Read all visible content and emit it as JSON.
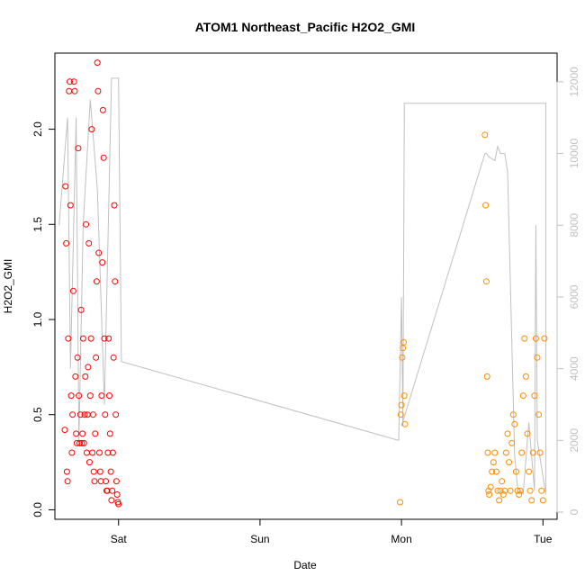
{
  "chart_data": {
    "type": "scatter",
    "title": "ATOM1 Northeast_Pacific H2O2_GMI",
    "xlabel": "Date",
    "ylabel": "H2O2_GMI",
    "y2label": "",
    "x_ticks": [
      "Sat",
      "Sun",
      "Mon",
      "Tue"
    ],
    "x_range_days": [
      -0.45,
      3.1
    ],
    "ylim": [
      -0.05,
      2.4
    ],
    "y_ticks": [
      0.0,
      0.5,
      1.0,
      1.5,
      2.0
    ],
    "y_tick_labels": [
      "0.0",
      "0.5",
      "1.0",
      "1.5",
      "2.0"
    ],
    "y2lim": [
      -200,
      12800
    ],
    "y2_ticks": [
      0,
      2000,
      4000,
      6000,
      8000,
      10000,
      12000
    ],
    "y2_tick_labels": [
      "0",
      "2000",
      "4000",
      "6000",
      "8000",
      "10000",
      "12000"
    ],
    "grid": false,
    "legend": "none",
    "colors": {
      "flight1": "#ff0000",
      "flight2": "#ff8c00",
      "altitude": "#c0c0c0",
      "axis": "#000000"
    },
    "series": [
      {
        "x_days": [
          -0.38,
          -0.375,
          -0.37,
          -0.365,
          -0.36,
          -0.355,
          -0.35,
          -0.345,
          -0.34,
          -0.335,
          -0.33,
          -0.325,
          -0.32,
          -0.315,
          -0.31,
          -0.305,
          -0.3,
          -0.295,
          -0.29,
          -0.285,
          -0.28,
          -0.275,
          -0.27,
          -0.265,
          -0.26,
          -0.255,
          -0.25,
          -0.245,
          -0.24,
          -0.235,
          -0.23,
          -0.225,
          -0.22,
          -0.215,
          -0.21,
          -0.205,
          -0.2,
          -0.195,
          -0.19,
          -0.185,
          -0.18,
          -0.175,
          -0.17,
          -0.165,
          -0.16,
          -0.155,
          -0.15,
          -0.145,
          -0.14,
          -0.135,
          -0.13,
          -0.125,
          -0.12,
          -0.115,
          -0.11,
          -0.105,
          -0.1,
          -0.095,
          -0.09,
          -0.085,
          -0.08,
          -0.075,
          -0.07,
          -0.065,
          -0.06,
          -0.055,
          -0.05,
          -0.045,
          -0.04,
          -0.035,
          -0.03,
          -0.025,
          -0.02,
          -0.015,
          -0.01,
          -0.005,
          0.0
        ],
        "values": [
          0.42,
          1.7,
          1.4,
          0.2,
          0.15,
          0.9,
          2.2,
          2.25,
          1.6,
          0.6,
          0.3,
          0.5,
          1.15,
          2.25,
          2.2,
          0.7,
          0.4,
          0.35,
          0.8,
          1.9,
          0.6,
          0.35,
          0.5,
          1.05,
          0.35,
          0.4,
          0.9,
          0.35,
          0.5,
          0.7,
          1.5,
          0.3,
          0.5,
          0.75,
          1.4,
          0.25,
          0.6,
          0.9,
          2.0,
          0.3,
          0.5,
          0.2,
          0.15,
          0.4,
          0.8,
          1.2,
          2.35,
          2.2,
          1.35,
          0.3,
          0.2,
          0.15,
          0.6,
          1.3,
          2.1,
          1.85,
          0.9,
          0.5,
          0.15,
          0.1,
          0.1,
          0.3,
          0.9,
          0.6,
          0.4,
          0.2,
          0.05,
          0.1,
          0.3,
          0.8,
          1.6,
          1.2,
          0.5,
          0.15,
          0.08,
          0.04,
          0.03
        ]
      },
      {
        "x_days": [
          1.99,
          1.995,
          2.0,
          2.005,
          2.01,
          2.015,
          2.02,
          2.025,
          2.59,
          2.595,
          2.6,
          2.605,
          2.61,
          2.615,
          2.62,
          2.63,
          2.64,
          2.65,
          2.66,
          2.67,
          2.68,
          2.69,
          2.7,
          2.71,
          2.72,
          2.73,
          2.74,
          2.75,
          2.76,
          2.77,
          2.78,
          2.79,
          2.8,
          2.81,
          2.82,
          2.83,
          2.84,
          2.85,
          2.86,
          2.87,
          2.88,
          2.89,
          2.9,
          2.91,
          2.92,
          2.93,
          2.94,
          2.95,
          2.96,
          2.97,
          2.98,
          2.99,
          3.0,
          3.01
        ],
        "values": [
          0.04,
          0.5,
          0.55,
          0.8,
          0.85,
          0.88,
          0.6,
          0.45,
          1.97,
          1.6,
          1.2,
          0.7,
          0.3,
          0.1,
          0.08,
          0.12,
          0.2,
          0.25,
          0.3,
          0.2,
          0.1,
          0.05,
          0.1,
          0.15,
          0.08,
          0.1,
          0.3,
          0.4,
          0.25,
          0.1,
          0.35,
          0.5,
          0.45,
          0.2,
          0.1,
          0.08,
          0.1,
          0.3,
          0.6,
          0.9,
          0.7,
          0.4,
          0.2,
          0.1,
          0.05,
          0.3,
          0.6,
          0.9,
          0.8,
          0.5,
          0.3,
          0.1,
          0.05,
          0.9
        ]
      }
    ],
    "altitude_line": {
      "x_days": [
        -0.42,
        -0.36,
        -0.34,
        -0.3,
        -0.28,
        -0.25,
        -0.2,
        -0.15,
        -0.1,
        -0.05,
        0.0,
        0.02,
        1.98,
        2.0,
        2.01,
        2.02,
        2.02,
        3.02,
        3.02,
        2.96,
        2.95,
        2.94,
        2.9,
        2.86,
        2.82,
        2.8,
        2.75,
        2.73,
        2.7,
        2.68,
        2.66,
        2.62,
        2.6,
        2.59,
        2.0
      ],
      "values": [
        8000,
        11000,
        4000,
        11000,
        2000,
        8000,
        11500,
        9000,
        3000,
        12100,
        12100,
        4200,
        2000,
        6000,
        2400,
        11000,
        11400,
        11400,
        500,
        2000,
        8000,
        600,
        2500,
        500,
        700,
        1600,
        9500,
        10000,
        10000,
        10200,
        9800,
        9900,
        10000,
        10000,
        2400
      ]
    }
  }
}
